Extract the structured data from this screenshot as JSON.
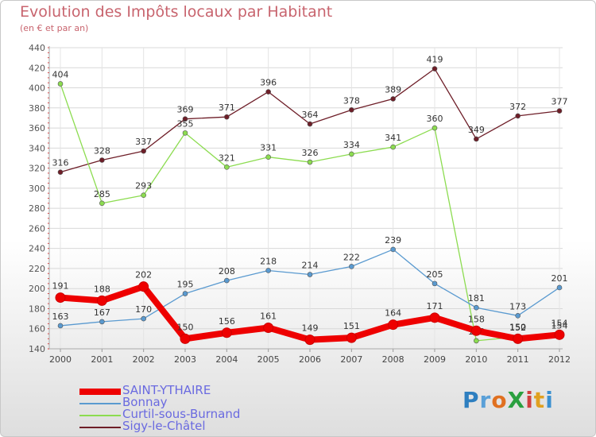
{
  "header": {
    "title": "Evolution des Impôts locaux par Habitant",
    "subtitle": "(en € et par an)"
  },
  "logo": {
    "text": "ProXiti",
    "letters": [
      "P",
      "r",
      "o",
      "X",
      "i",
      "t",
      "i"
    ],
    "colors": [
      "#2e7fc0",
      "#5aa0d8",
      "#e07020",
      "#2aa040",
      "#d04040",
      "#e0a020",
      "#3a90d0"
    ]
  },
  "chart_data": {
    "type": "line",
    "title": "Evolution des Impôts locaux par Habitant",
    "subtitle": "(en € et par an)",
    "xlabel": "",
    "ylabel": "",
    "categories": [
      "2000",
      "2001",
      "2002",
      "2003",
      "2004",
      "2005",
      "2006",
      "2007",
      "2008",
      "2009",
      "2010",
      "2011",
      "2012"
    ],
    "ylim": [
      140,
      440
    ],
    "yticks": [
      140,
      160,
      180,
      200,
      220,
      240,
      260,
      280,
      300,
      320,
      340,
      360,
      380,
      400,
      420,
      440
    ],
    "grid": true,
    "legend_position": "bottom-left",
    "series": [
      {
        "name": "Sigy-le-Châtel",
        "color": "#6e1e28",
        "values": [
          316,
          328,
          337,
          369,
          371,
          396,
          364,
          378,
          389,
          419,
          349,
          372,
          377
        ]
      },
      {
        "name": "Curtil-sous-Burnand",
        "color": "#8cdc50",
        "values": [
          404,
          285,
          293,
          355,
          321,
          331,
          326,
          334,
          341,
          360,
          148,
          152,
          154
        ]
      },
      {
        "name": "Bonnay",
        "color": "#5a9ad0",
        "values": [
          163,
          167,
          170,
          195,
          208,
          218,
          214,
          222,
          239,
          205,
          181,
          173,
          201
        ]
      },
      {
        "name": "SAINT-YTHAIRE",
        "color": "#ee0000",
        "values": [
          191,
          188,
          202,
          150,
          156,
          161,
          149,
          151,
          164,
          171,
          158,
          150,
          154
        ]
      }
    ],
    "legend_order": [
      "SAINT-YTHAIRE",
      "Bonnay",
      "Curtil-sous-Burnand",
      "Sigy-le-Châtel"
    ]
  }
}
